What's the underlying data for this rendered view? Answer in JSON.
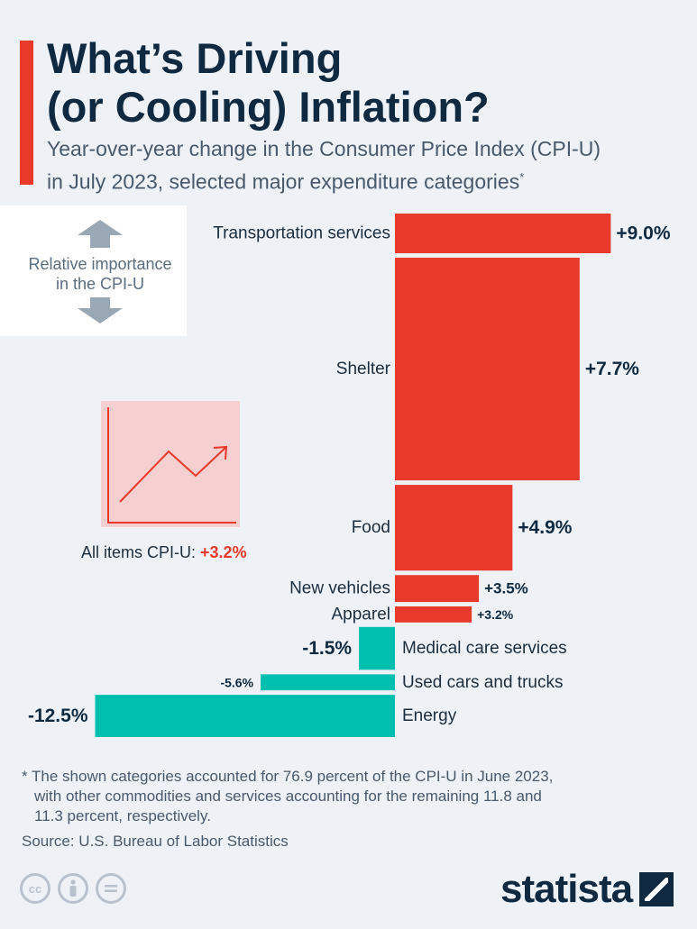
{
  "header": {
    "title_line1": "What’s Driving",
    "title_line2": "(or Cooling) Inflation?",
    "subtitle_line1": "Year-over-year change in the Consumer Price Index (CPI-U)",
    "subtitle_line2": "in July 2023, selected major expenditure categories",
    "subtitle_marker": "*"
  },
  "legend": {
    "line1": "Relative importance",
    "line2": "in the CPI-U"
  },
  "all_items": {
    "label": "All items CPI-U:",
    "value": "+3.2%"
  },
  "chart_data": {
    "type": "bar",
    "orientation": "horizontal",
    "title": "What’s Driving (or Cooling) Inflation?",
    "subtitle": "Year-over-year change in the Consumer Price Index (CPI-U) in July 2023, selected major expenditure categories",
    "bar_height_encodes": "Relative importance in the CPI-U",
    "categories": [
      "Transportation services",
      "Shelter",
      "Food",
      "New vehicles",
      "Apparel",
      "Medical care services",
      "Used cars and trucks",
      "Energy"
    ],
    "values": [
      9.0,
      7.7,
      4.9,
      3.5,
      3.2,
      -1.5,
      -5.6,
      -12.5
    ],
    "value_labels": [
      "+9.0%",
      "+7.7%",
      "+4.9%",
      "+3.5%",
      "+3.2%",
      "-1.5%",
      "-5.6%",
      "-12.5%"
    ],
    "relative_importance": [
      6.2,
      34.8,
      13.4,
      4.2,
      2.5,
      6.7,
      2.5,
      6.6
    ],
    "all_items_value": 3.2
  },
  "colors": {
    "positive": "#e8392b",
    "negative": "#00bfae",
    "accent": "#e8392b",
    "text": "#0f2a40"
  },
  "footer": {
    "note_line1": "* The shown categories accounted for 76.9 percent of the CPI-U in June 2023,",
    "note_line2": "with other commodities and services accounting for the remaining 11.8 and",
    "note_line3": "11.3 percent, respectively.",
    "source": "Source: U.S. Bureau of Labor Statistics",
    "brand": "statista",
    "license_icons": [
      "cc-icon",
      "by-person-icon",
      "nd-equals-icon"
    ]
  }
}
